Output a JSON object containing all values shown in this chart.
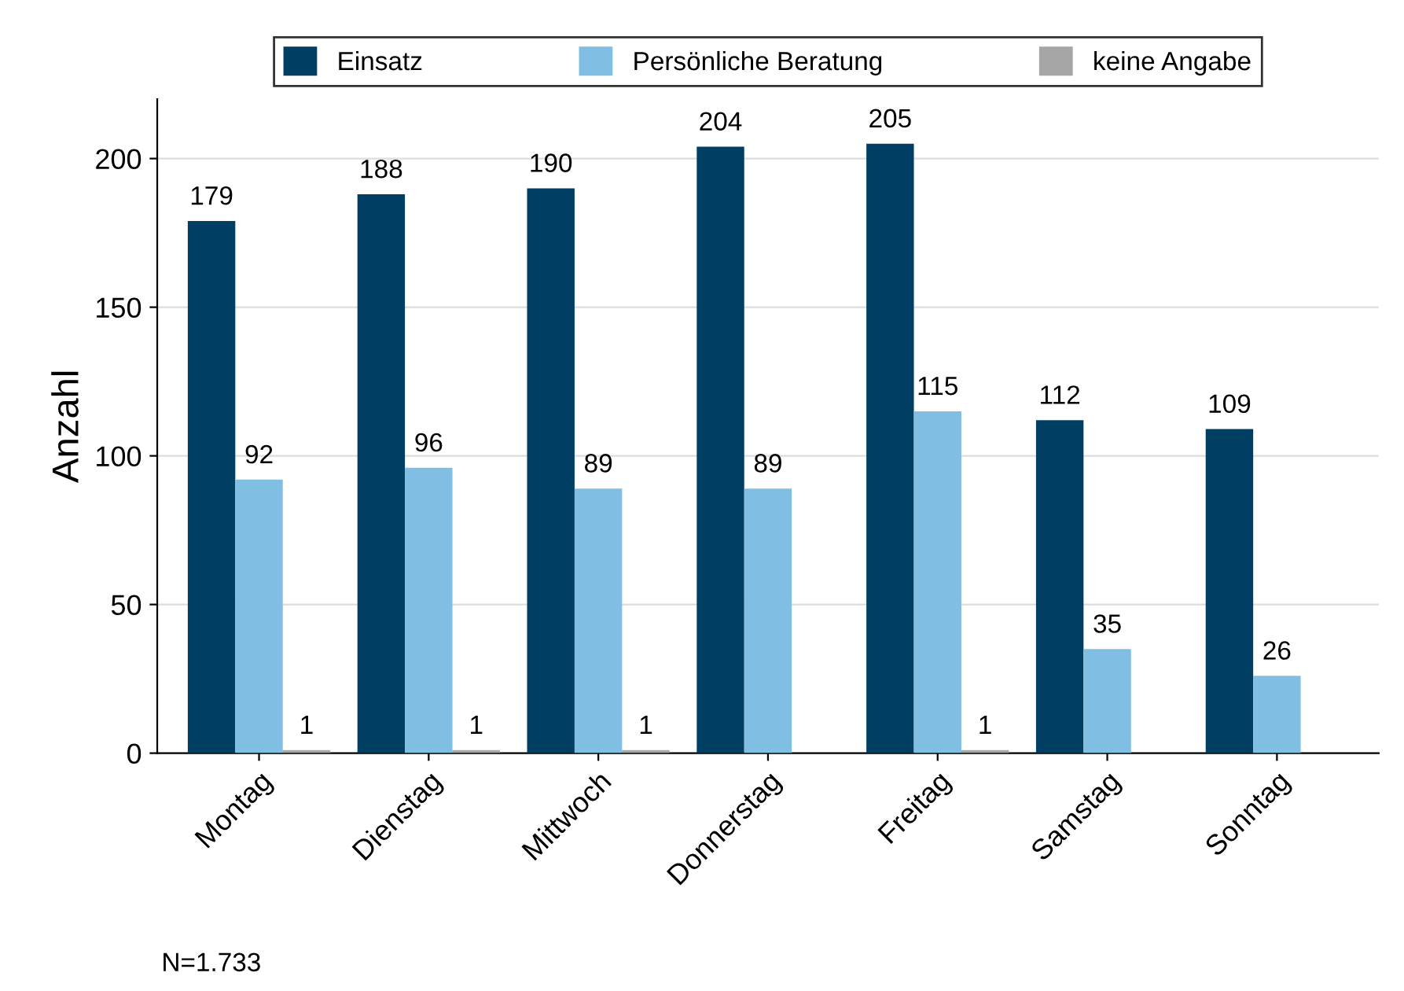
{
  "chart_data": {
    "type": "bar",
    "ylabel": "Anzahl",
    "categories": [
      "Montag",
      "Dienstag",
      "Mittwoch",
      "Donnerstag",
      "Freitag",
      "Samstag",
      "Sonntag"
    ],
    "series": [
      {
        "name": "Einsatz",
        "color": "#003f63",
        "values": [
          179,
          188,
          190,
          204,
          205,
          112,
          109
        ]
      },
      {
        "name": "Persönliche Beratung",
        "color": "#80bee3",
        "values": [
          92,
          96,
          89,
          89,
          115,
          35,
          26
        ]
      },
      {
        "name": "keine Angabe",
        "color": "#a6a6a6",
        "values": [
          1,
          1,
          1,
          null,
          1,
          null,
          null
        ]
      }
    ],
    "ylim": [
      0,
      220
    ],
    "yticks": [
      0,
      50,
      100,
      150,
      200
    ],
    "grid": "y",
    "legend": "top",
    "data_labels": true,
    "annotations": [
      "N=1.733"
    ]
  }
}
